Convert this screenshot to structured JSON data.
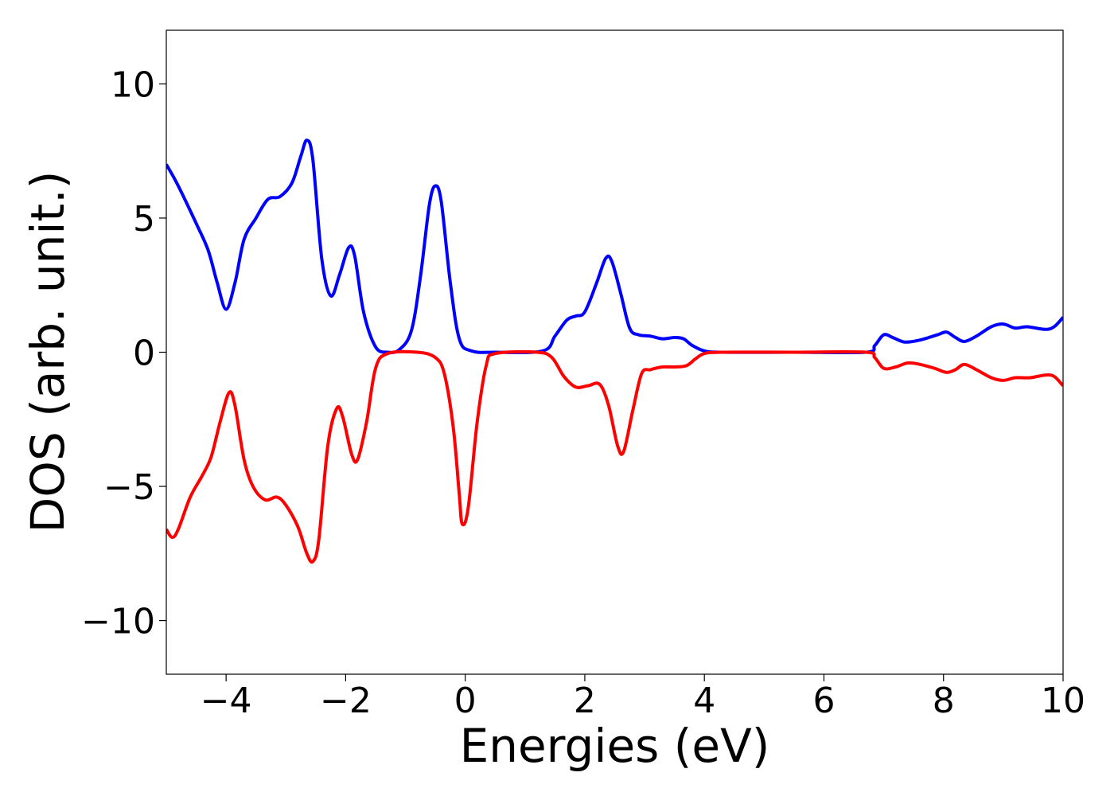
{
  "chart_data": {
    "type": "line",
    "title": "",
    "xlabel": "Energies (eV)",
    "ylabel": "DOS (arb. unit.)",
    "xlim": [
      -5,
      10
    ],
    "ylim": [
      -12,
      12
    ],
    "grid": false,
    "legend": "none",
    "x_ticks": [
      {
        "value": -4,
        "label": "−4"
      },
      {
        "value": -2,
        "label": "−2"
      },
      {
        "value": 0,
        "label": "0"
      },
      {
        "value": 2,
        "label": "2"
      },
      {
        "value": 4,
        "label": "4"
      },
      {
        "value": 6,
        "label": "6"
      },
      {
        "value": 8,
        "label": "8"
      },
      {
        "value": 10,
        "label": "10"
      }
    ],
    "y_ticks": [
      {
        "value": -10,
        "label": "−10"
      },
      {
        "value": -5,
        "label": "−5"
      },
      {
        "value": 0,
        "label": "0"
      },
      {
        "value": 5,
        "label": "5"
      },
      {
        "value": 10,
        "label": "10"
      }
    ],
    "series": [
      {
        "color": "#0000ff",
        "points": [
          [
            -5.0,
            7.0
          ],
          [
            -4.8,
            6.2
          ],
          [
            -4.5,
            4.8
          ],
          [
            -4.3,
            3.8
          ],
          [
            -4.15,
            2.6
          ],
          [
            -4.0,
            1.6
          ],
          [
            -3.85,
            2.6
          ],
          [
            -3.7,
            4.2
          ],
          [
            -3.5,
            5.0
          ],
          [
            -3.3,
            5.7
          ],
          [
            -3.1,
            5.8
          ],
          [
            -2.9,
            6.3
          ],
          [
            -2.75,
            7.3
          ],
          [
            -2.65,
            7.9
          ],
          [
            -2.55,
            7.2
          ],
          [
            -2.4,
            3.5
          ],
          [
            -2.25,
            2.1
          ],
          [
            -2.1,
            2.9
          ],
          [
            -1.95,
            3.9
          ],
          [
            -1.85,
            3.6
          ],
          [
            -1.7,
            1.5
          ],
          [
            -1.5,
            0.2
          ],
          [
            -1.3,
            0.0
          ],
          [
            -1.1,
            0.1
          ],
          [
            -0.9,
            0.8
          ],
          [
            -0.75,
            2.8
          ],
          [
            -0.6,
            5.5
          ],
          [
            -0.5,
            6.2
          ],
          [
            -0.4,
            5.6
          ],
          [
            -0.25,
            2.6
          ],
          [
            -0.1,
            0.5
          ],
          [
            0.1,
            0.05
          ],
          [
            0.5,
            0.0
          ],
          [
            1.3,
            0.05
          ],
          [
            1.5,
            0.6
          ],
          [
            1.7,
            1.2
          ],
          [
            1.85,
            1.35
          ],
          [
            2.0,
            1.5
          ],
          [
            2.2,
            2.6
          ],
          [
            2.35,
            3.5
          ],
          [
            2.45,
            3.4
          ],
          [
            2.6,
            2.2
          ],
          [
            2.75,
            0.9
          ],
          [
            2.9,
            0.65
          ],
          [
            3.1,
            0.6
          ],
          [
            3.3,
            0.5
          ],
          [
            3.5,
            0.55
          ],
          [
            3.65,
            0.5
          ],
          [
            3.8,
            0.25
          ],
          [
            4.0,
            0.05
          ],
          [
            4.3,
            0.0
          ],
          [
            5.5,
            0.0
          ],
          [
            6.7,
            0.0
          ],
          [
            6.85,
            0.25
          ],
          [
            7.0,
            0.65
          ],
          [
            7.15,
            0.55
          ],
          [
            7.35,
            0.38
          ],
          [
            7.6,
            0.45
          ],
          [
            7.9,
            0.65
          ],
          [
            8.05,
            0.75
          ],
          [
            8.2,
            0.55
          ],
          [
            8.35,
            0.4
          ],
          [
            8.55,
            0.6
          ],
          [
            8.8,
            0.95
          ],
          [
            9.0,
            1.05
          ],
          [
            9.2,
            0.9
          ],
          [
            9.4,
            0.95
          ],
          [
            9.7,
            0.85
          ],
          [
            9.85,
            0.95
          ],
          [
            10.0,
            1.3
          ]
        ]
      },
      {
        "color": "#ff0000",
        "points": [
          [
            -5.0,
            -6.6
          ],
          [
            -4.9,
            -6.9
          ],
          [
            -4.8,
            -6.6
          ],
          [
            -4.6,
            -5.4
          ],
          [
            -4.4,
            -4.6
          ],
          [
            -4.25,
            -3.9
          ],
          [
            -4.1,
            -2.6
          ],
          [
            -3.95,
            -1.5
          ],
          [
            -3.85,
            -2.0
          ],
          [
            -3.7,
            -4.0
          ],
          [
            -3.55,
            -5.0
          ],
          [
            -3.35,
            -5.5
          ],
          [
            -3.15,
            -5.4
          ],
          [
            -3.0,
            -5.7
          ],
          [
            -2.8,
            -6.5
          ],
          [
            -2.65,
            -7.5
          ],
          [
            -2.55,
            -7.8
          ],
          [
            -2.45,
            -7.0
          ],
          [
            -2.3,
            -3.5
          ],
          [
            -2.15,
            -2.1
          ],
          [
            -2.05,
            -2.4
          ],
          [
            -1.9,
            -3.8
          ],
          [
            -1.8,
            -4.0
          ],
          [
            -1.65,
            -2.6
          ],
          [
            -1.5,
            -0.6
          ],
          [
            -1.3,
            -0.05
          ],
          [
            -0.8,
            0.0
          ],
          [
            -0.5,
            -0.2
          ],
          [
            -0.35,
            -0.8
          ],
          [
            -0.2,
            -2.8
          ],
          [
            -0.1,
            -5.3
          ],
          [
            -0.05,
            -6.4
          ],
          [
            0.05,
            -5.8
          ],
          [
            0.2,
            -2.6
          ],
          [
            0.35,
            -0.5
          ],
          [
            0.5,
            -0.05
          ],
          [
            1.2,
            0.0
          ],
          [
            1.45,
            -0.2
          ],
          [
            1.65,
            -0.9
          ],
          [
            1.85,
            -1.3
          ],
          [
            2.05,
            -1.25
          ],
          [
            2.25,
            -1.2
          ],
          [
            2.4,
            -2.0
          ],
          [
            2.55,
            -3.5
          ],
          [
            2.65,
            -3.7
          ],
          [
            2.8,
            -2.2
          ],
          [
            2.95,
            -0.8
          ],
          [
            3.1,
            -0.65
          ],
          [
            3.3,
            -0.55
          ],
          [
            3.5,
            -0.55
          ],
          [
            3.7,
            -0.5
          ],
          [
            3.85,
            -0.25
          ],
          [
            4.0,
            -0.05
          ],
          [
            4.3,
            0.0
          ],
          [
            5.5,
            0.0
          ],
          [
            6.7,
            0.0
          ],
          [
            6.85,
            -0.2
          ],
          [
            7.0,
            -0.6
          ],
          [
            7.2,
            -0.55
          ],
          [
            7.4,
            -0.4
          ],
          [
            7.6,
            -0.45
          ],
          [
            7.85,
            -0.6
          ],
          [
            8.05,
            -0.75
          ],
          [
            8.2,
            -0.65
          ],
          [
            8.35,
            -0.45
          ],
          [
            8.55,
            -0.65
          ],
          [
            8.8,
            -0.95
          ],
          [
            9.0,
            -1.05
          ],
          [
            9.2,
            -0.95
          ],
          [
            9.45,
            -0.95
          ],
          [
            9.7,
            -0.85
          ],
          [
            9.85,
            -0.9
          ],
          [
            10.0,
            -1.25
          ]
        ]
      }
    ]
  }
}
